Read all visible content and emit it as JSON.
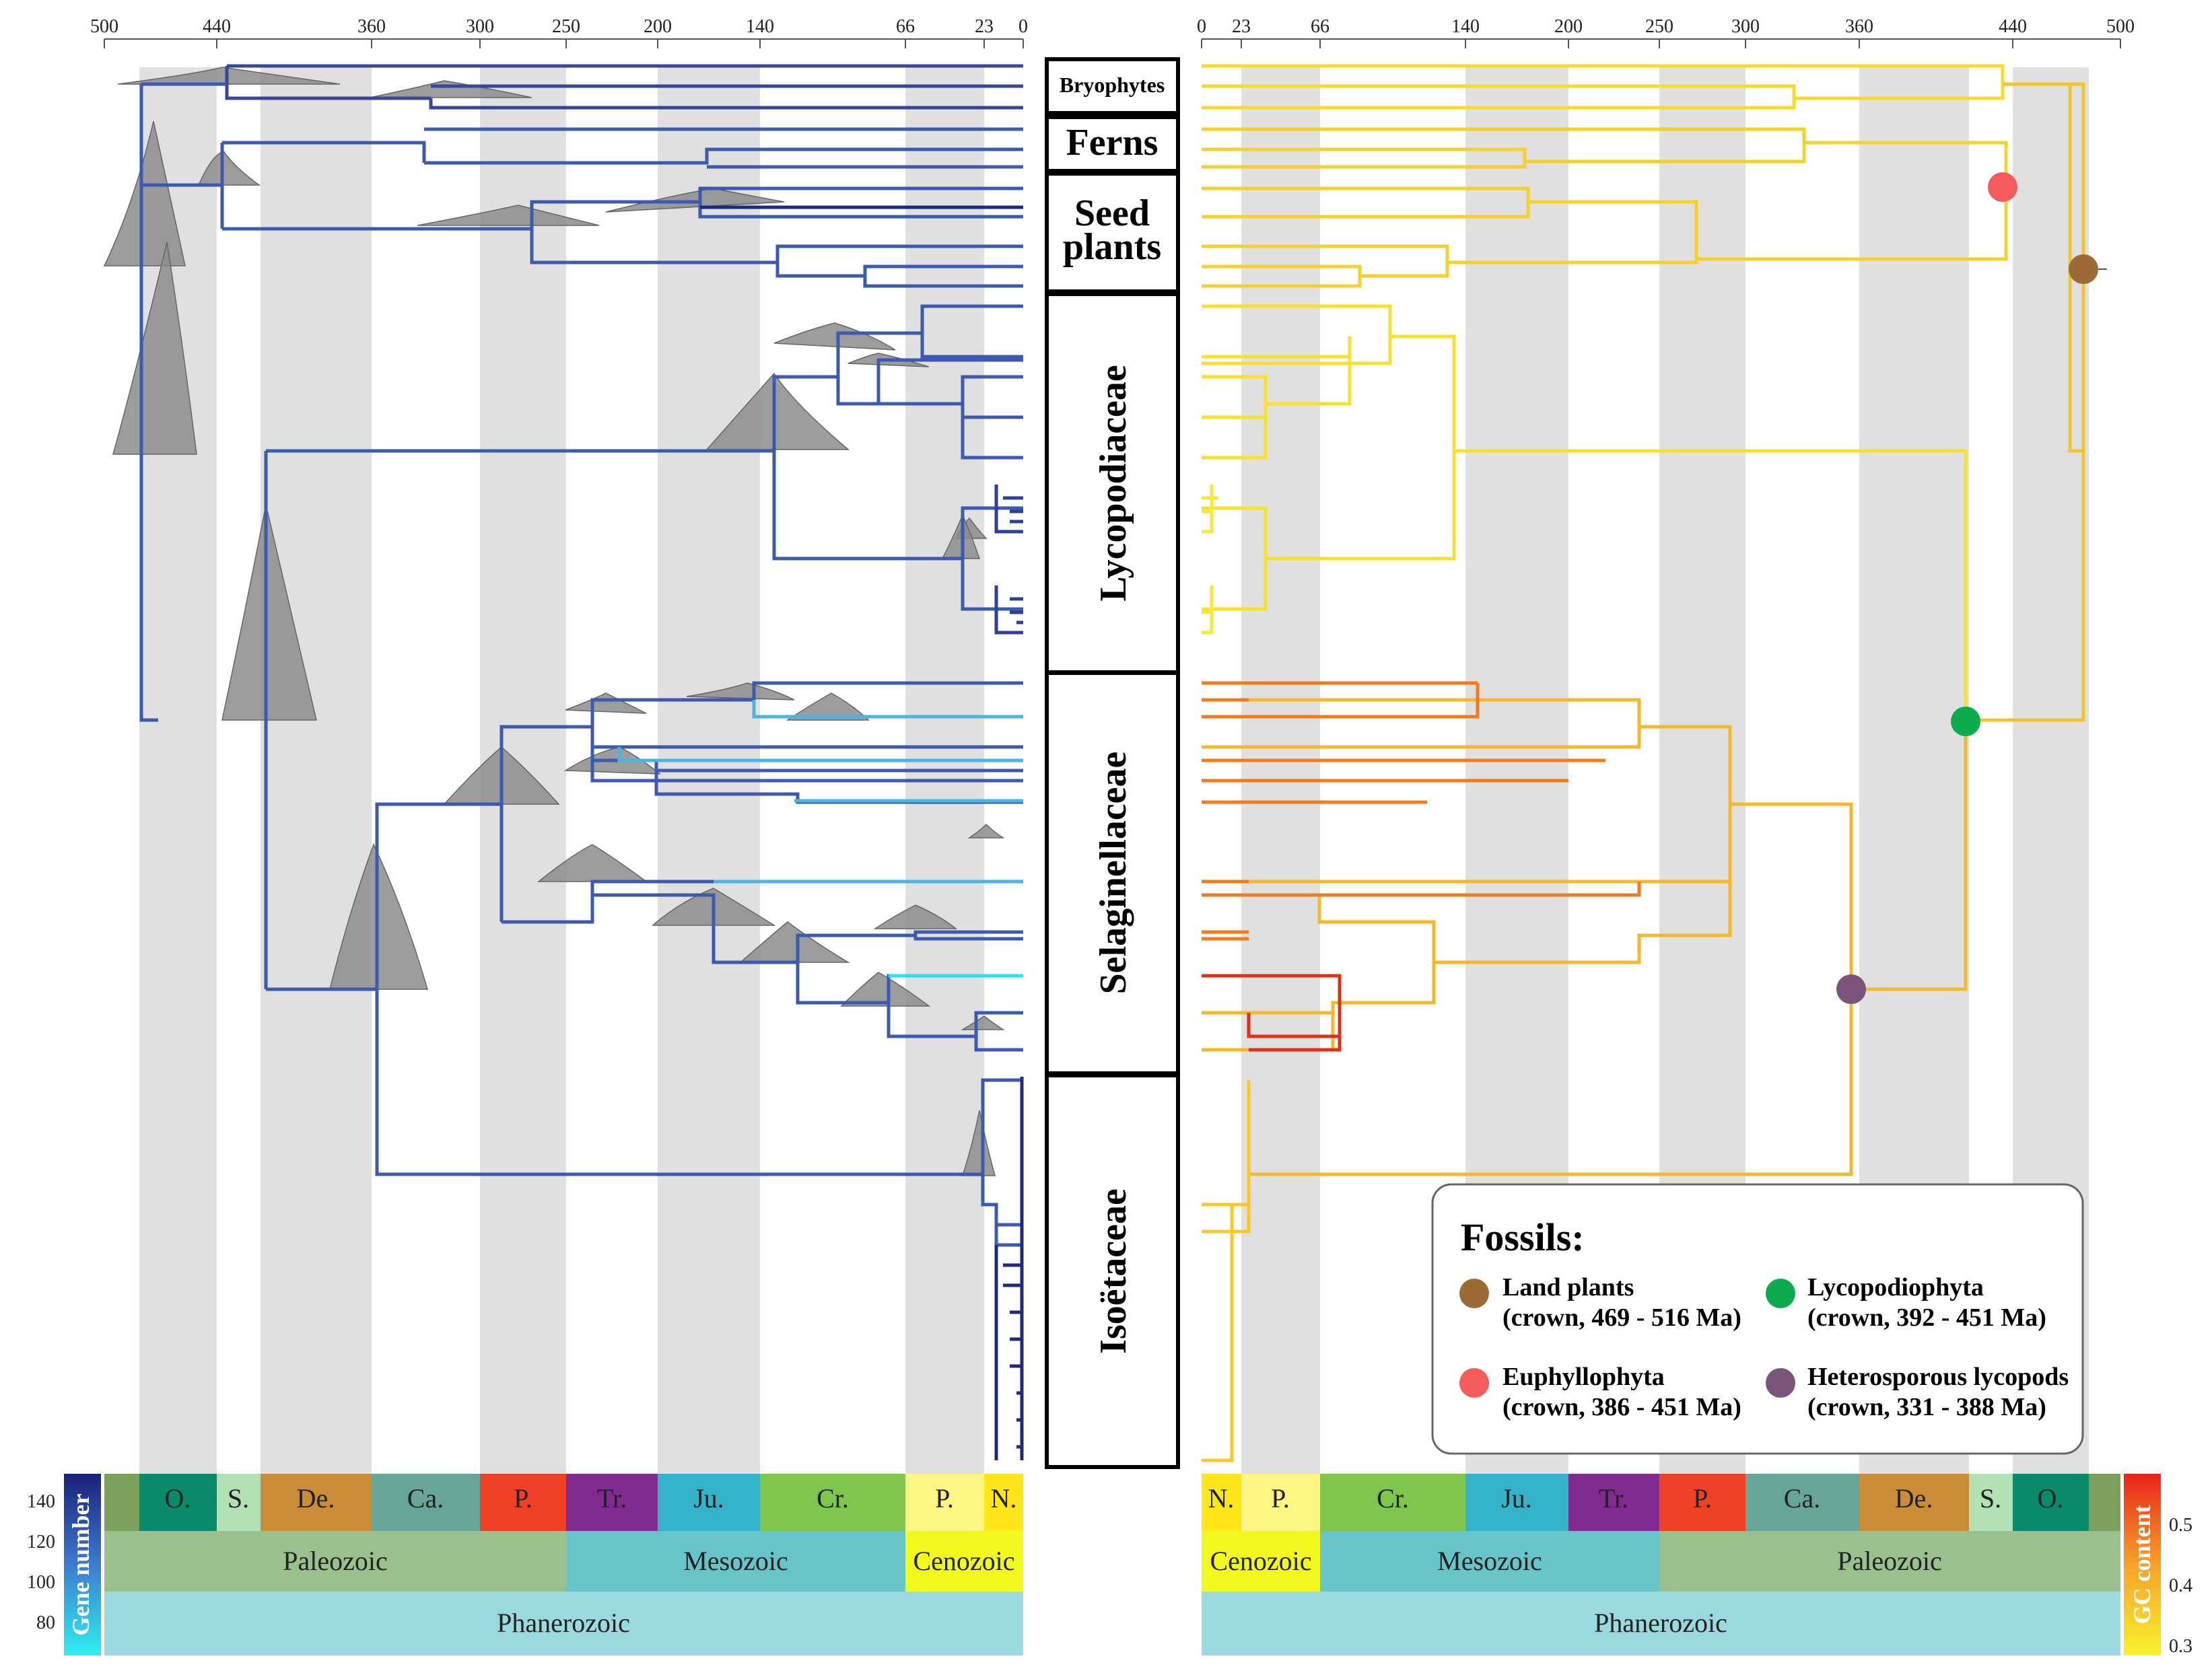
{
  "figure": {
    "left_axis_ticks": [
      "500",
      "440",
      "360",
      "300",
      "250",
      "200",
      "140",
      "66",
      "23",
      "0"
    ],
    "right_axis_ticks": [
      "0",
      "23",
      "66",
      "140",
      "200",
      "250",
      "300",
      "360",
      "440",
      "500"
    ],
    "clades": [
      {
        "id": "bryophytes",
        "label": "Bryophytes"
      },
      {
        "id": "ferns",
        "label": "Ferns"
      },
      {
        "id": "seed-plants",
        "label": "Seed plants"
      },
      {
        "id": "lycopodiaceae",
        "label": "Lycopodiaceae"
      },
      {
        "id": "selaginellaceae",
        "label": "Selaginellaceae"
      },
      {
        "id": "isoetaceae",
        "label": "Isoëtaceae"
      }
    ],
    "periods": [
      "O.",
      "S.",
      "De.",
      "Ca.",
      "P.",
      "Tr.",
      "Ju.",
      "Cr.",
      "P.",
      "N."
    ],
    "eras": [
      "Paleozoic",
      "Mesozoic",
      "Cenozoic"
    ],
    "eon": "Phanerozoic",
    "gene_number_label": "Gene number",
    "gene_number_ticks": [
      "140",
      "120",
      "100",
      "80"
    ],
    "gc_content_label": "GC content",
    "gc_ticks": [
      "0.5",
      "0.4",
      "0.3"
    ],
    "fossils": {
      "title": "Fossils:",
      "items": [
        {
          "name": "Land plants",
          "range": "(crown, 469 - 516 Ma)",
          "color": "#9b6a35"
        },
        {
          "name": "Lycopodiophyta",
          "range": "(crown, 392 - 451 Ma)",
          "color": "#0aac4e"
        },
        {
          "name": "Euphyllophyta",
          "range": "(crown, 386 - 451 Ma)",
          "color": "#f45b5b"
        },
        {
          "name": "Heterosporous lycopods",
          "range": "(crown, 331 - 388 Ma)",
          "color": "#7b5479"
        }
      ]
    },
    "colors": {
      "blue_tree": "#3d5fb0",
      "orange_tree": "#f5b82a",
      "gray_band": "#e0e0e0"
    }
  }
}
